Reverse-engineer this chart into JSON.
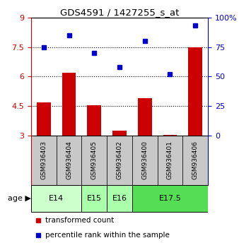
{
  "title": "GDS4591 / 1427255_s_at",
  "samples": [
    "GSM936403",
    "GSM936404",
    "GSM936405",
    "GSM936402",
    "GSM936400",
    "GSM936401",
    "GSM936406"
  ],
  "transformed_counts": [
    4.7,
    6.2,
    4.55,
    3.25,
    4.9,
    3.05,
    7.5
  ],
  "percentile_ranks": [
    75,
    85,
    70,
    58,
    80,
    52,
    93
  ],
  "ylim_left": [
    3,
    9
  ],
  "ylim_right": [
    0,
    100
  ],
  "yticks_left": [
    3,
    4.5,
    6,
    7.5,
    9
  ],
  "yticks_right": [
    0,
    25,
    50,
    75,
    100
  ],
  "ytick_labels_left": [
    "3",
    "4.5",
    "6",
    "7.5",
    "9"
  ],
  "ytick_labels_right": [
    "0",
    "25",
    "50",
    "75",
    "100%"
  ],
  "hlines": [
    4.5,
    6,
    7.5
  ],
  "bar_color": "#cc0000",
  "dot_color": "#0000cc",
  "age_groups": [
    {
      "label": "E14",
      "start": 0,
      "end": 1,
      "color": "#ccffcc"
    },
    {
      "label": "E15",
      "start": 2,
      "end": 2,
      "color": "#aaffaa"
    },
    {
      "label": "E16",
      "start": 3,
      "end": 3,
      "color": "#aaffaa"
    },
    {
      "label": "E17.5",
      "start": 4,
      "end": 6,
      "color": "#55dd55"
    }
  ],
  "sample_box_color": "#c8c8c8",
  "legend_bar_label": "transformed count",
  "legend_dot_label": "percentile rank within the sample",
  "figsize": [
    3.38,
    3.54
  ],
  "dpi": 100
}
